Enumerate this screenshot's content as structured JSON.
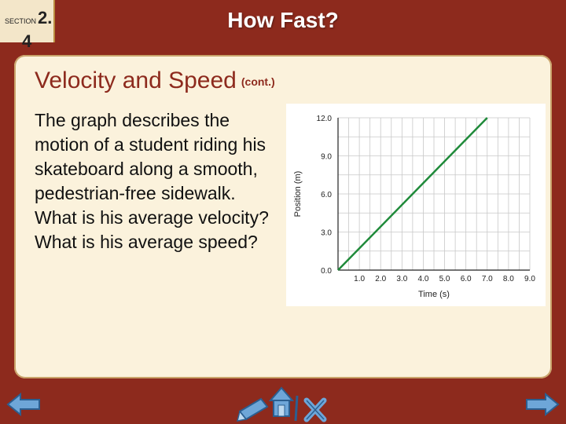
{
  "header": {
    "section_label": "SECTION",
    "section_num_a": "2.",
    "section_num_b": "4",
    "title": "How Fast?"
  },
  "content": {
    "heading": "Velocity and Speed",
    "heading_suffix": "(cont.)",
    "paragraph": "The graph describes the motion of a student riding his skateboard along a smooth, pedestrian-free sidewalk. What is his average velocity? What is his average speed?"
  },
  "chart_data": {
    "type": "line",
    "xlabel": "Time (s)",
    "ylabel": "Position (m)",
    "xlim": [
      0,
      9
    ],
    "ylim": [
      0,
      12
    ],
    "x_ticks": [
      "1.0",
      "2.0",
      "3.0",
      "4.0",
      "5.0",
      "6.0",
      "7.0",
      "8.0",
      "9.0"
    ],
    "y_ticks": [
      "0.0",
      "3.0",
      "6.0",
      "9.0",
      "12.0"
    ],
    "grid": true,
    "series": [
      {
        "color": "#1f8a3a",
        "x": [
          0,
          7
        ],
        "y": [
          0,
          12
        ]
      }
    ]
  },
  "footer": {
    "left_icon": "back-arrow-icon",
    "right_icon": "forward-arrow-icon",
    "center_icons": [
      "pencil-icon",
      "home-icon",
      "close-x-icon"
    ]
  }
}
